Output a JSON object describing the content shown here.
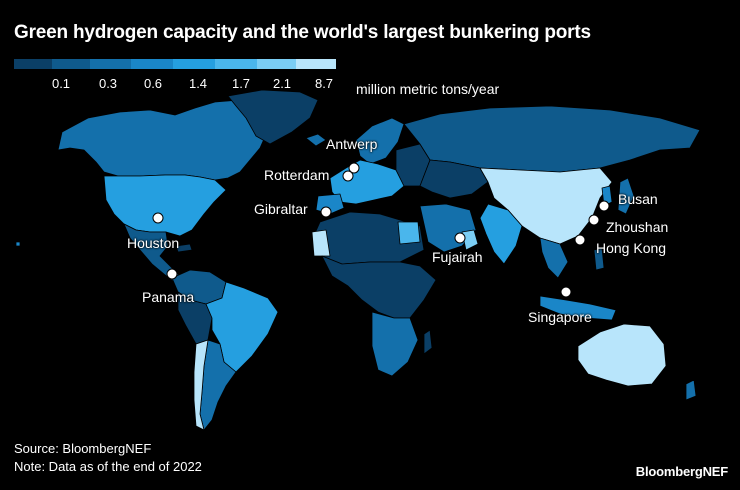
{
  "title": "Green hydrogen capacity and the world's largest bunkering ports",
  "legend": {
    "bins": [
      {
        "label": "",
        "color": "#0b3f66"
      },
      {
        "label": "0.1",
        "color": "#0f5a8c"
      },
      {
        "label": "0.3",
        "color": "#1470ab"
      },
      {
        "label": "0.6",
        "color": "#1a86c8"
      },
      {
        "label": "1.4",
        "color": "#259fe0"
      },
      {
        "label": "1.7",
        "color": "#4ab6ec"
      },
      {
        "label": "2.1",
        "color": "#7acdf4"
      },
      {
        "label": "8.7",
        "color": "#b8e5fb"
      }
    ],
    "unit": "million metric tons/year"
  },
  "ports": [
    {
      "name": "Antwerp"
    },
    {
      "name": "Rotterdam"
    },
    {
      "name": "Gibraltar"
    },
    {
      "name": "Houston"
    },
    {
      "name": "Panama"
    },
    {
      "name": "Fujairah"
    },
    {
      "name": "Singapore"
    },
    {
      "name": "Hong Kong"
    },
    {
      "name": "Zhoushan"
    },
    {
      "name": "Busan"
    }
  ],
  "regions": [
    {
      "name": "Canada",
      "color": "#1470ab"
    },
    {
      "name": "United States",
      "color": "#259fe0"
    },
    {
      "name": "Mexico",
      "color": "#0f5a8c"
    },
    {
      "name": "Brazil",
      "color": "#259fe0"
    },
    {
      "name": "Argentina",
      "color": "#1470ab"
    },
    {
      "name": "Chile",
      "color": "#b8e5fb"
    },
    {
      "name": "China",
      "color": "#b8e5fb"
    },
    {
      "name": "Australia",
      "color": "#b8e5fb"
    },
    {
      "name": "Mauritania",
      "color": "#b8e5fb"
    },
    {
      "name": "Egypt",
      "color": "#4ab6ec"
    },
    {
      "name": "Oman",
      "color": "#7acdf4"
    },
    {
      "name": "India",
      "color": "#259fe0"
    }
  ],
  "source": "Source: BloombergNEF",
  "note": "Note: Data as of the end of 2022",
  "logo": "BloombergNEF"
}
